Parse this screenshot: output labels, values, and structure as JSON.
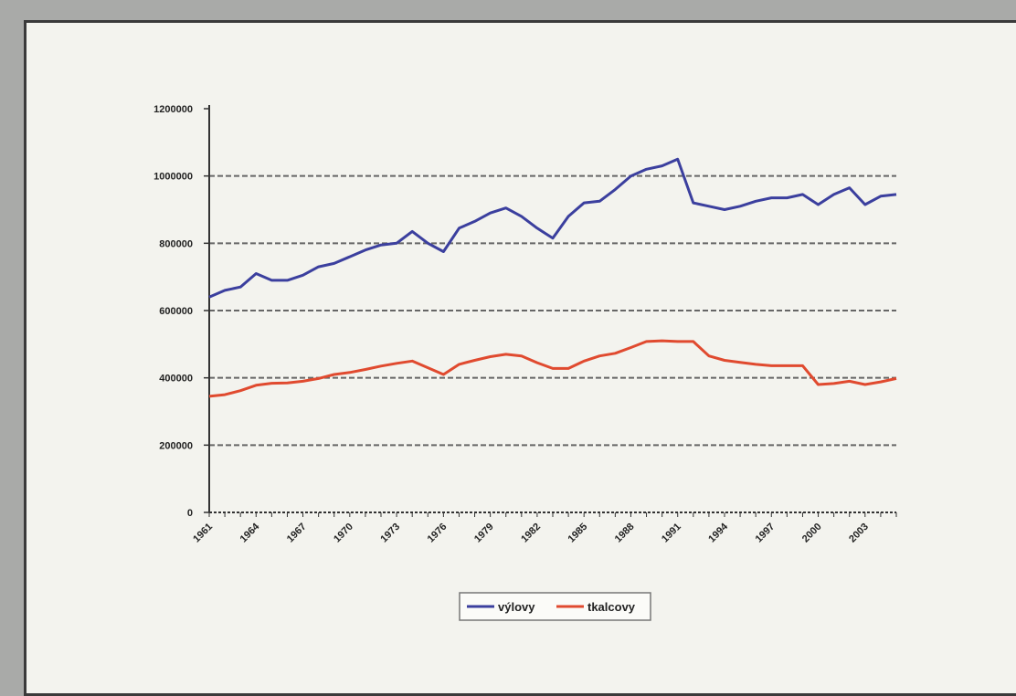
{
  "chart_data": {
    "type": "line",
    "title": "",
    "xlabel": "",
    "ylabel": "",
    "ylim": [
      0,
      1200000
    ],
    "yticks": [
      "0",
      "200000",
      "400000",
      "600000",
      "800000",
      "1000000",
      "1200000"
    ],
    "xtick_labels": [
      "1961",
      "1964",
      "1967",
      "1970",
      "1973",
      "1976",
      "1979",
      "1982",
      "1985",
      "1988",
      "1991",
      "1994",
      "1997",
      "2000",
      "2003"
    ],
    "grid": true,
    "legend": "bottom",
    "x": [
      1961,
      1962,
      1963,
      1964,
      1965,
      1966,
      1967,
      1968,
      1969,
      1970,
      1971,
      1972,
      1973,
      1974,
      1975,
      1976,
      1977,
      1978,
      1979,
      1980,
      1981,
      1982,
      1983,
      1984,
      1985,
      1986,
      1987,
      1988,
      1989,
      1990,
      1991,
      1992,
      1993,
      1994,
      1995,
      1996,
      1997,
      1998,
      1999,
      2000,
      2001,
      2002,
      2003,
      2004,
      2005
    ],
    "series": [
      {
        "name": "výlovy",
        "color": "#3b3f9e",
        "values": [
          640000,
          660000,
          670000,
          710000,
          690000,
          690000,
          705000,
          730000,
          740000,
          760000,
          780000,
          795000,
          800000,
          835000,
          800000,
          775000,
          845000,
          865000,
          890000,
          905000,
          880000,
          845000,
          815000,
          880000,
          920000,
          925000,
          960000,
          1000000,
          1020000,
          1030000,
          1050000,
          920000,
          910000,
          900000,
          910000,
          925000,
          935000,
          935000,
          945000,
          915000,
          945000,
          965000,
          915000,
          940000,
          945000
        ]
      },
      {
        "name": "tkalcovy",
        "color": "#e04a2f",
        "values": [
          345000,
          350000,
          362000,
          378000,
          384000,
          385000,
          390000,
          398000,
          410000,
          416000,
          425000,
          435000,
          443000,
          450000,
          430000,
          410000,
          440000,
          452000,
          463000,
          470000,
          465000,
          445000,
          428000,
          428000,
          450000,
          465000,
          473000,
          490000,
          508000,
          510000,
          508000,
          508000,
          465000,
          452000,
          446000,
          440000,
          436000,
          436000,
          436000,
          380000,
          383000,
          390000,
          380000,
          388000,
          398000
        ]
      }
    ]
  }
}
